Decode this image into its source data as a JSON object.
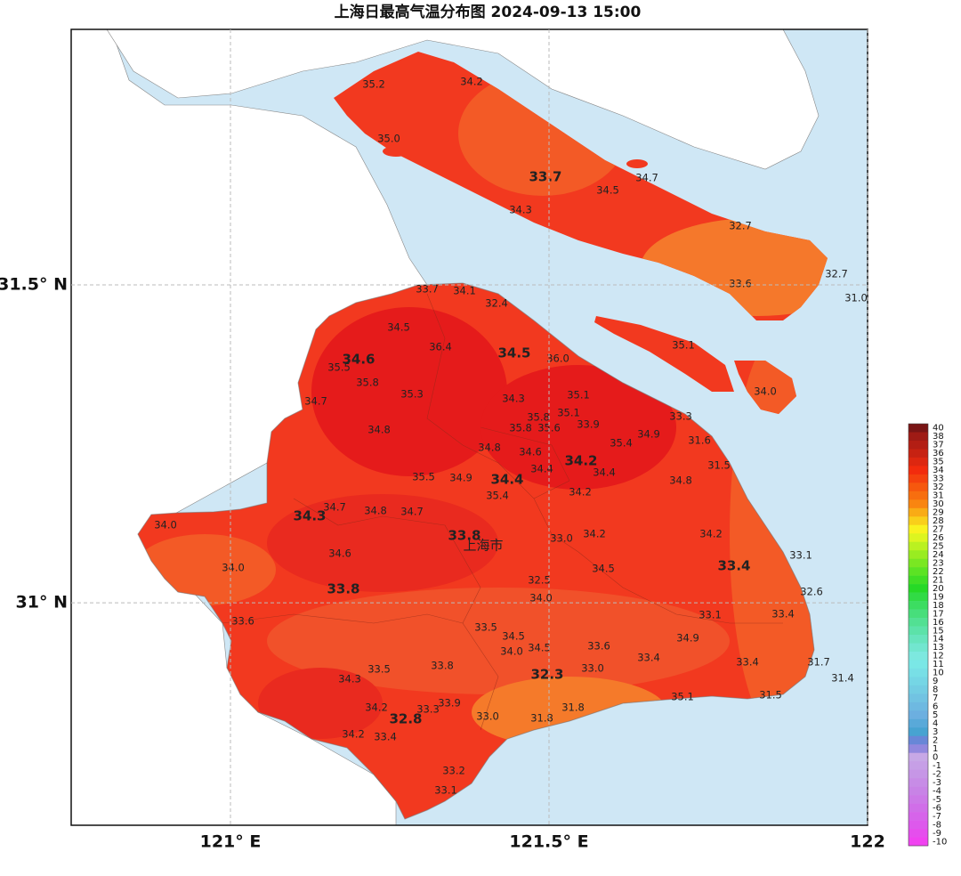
{
  "map": {
    "title": "上海日最高气温分布图 2024-09-13 15:00",
    "xlim": [
      120.75,
      122
    ],
    "ylim": [
      30.65,
      31.902
    ],
    "xticks": [
      {
        "value": 121,
        "label": "121° E"
      },
      {
        "value": 121.5,
        "label": "121.5° E"
      },
      {
        "value": 122,
        "label": "122"
      }
    ],
    "yticks": [
      {
        "value": 31.5,
        "label": "31.5° N"
      },
      {
        "value": 31,
        "label": "31° N"
      }
    ],
    "grid": true,
    "city_label": "上海市",
    "station_labels": [
      "35.2",
      "34.2",
      "35.0",
      "33.7",
      "34.7",
      "34.5",
      "34.3",
      "32.7",
      "32.7",
      "33.6",
      "31.0",
      "35.1",
      "34.0",
      "33.7",
      "34.1",
      "32.4",
      "34.5",
      "36.4",
      "34.5",
      "36.0",
      "34.6",
      "35.5",
      "35.8",
      "35.3",
      "35.1",
      "34.3",
      "34.7",
      "35.8",
      "35.1",
      "33.3",
      "35.8",
      "35.6",
      "33.9",
      "34.8",
      "34.9",
      "31.6",
      "35.4",
      "34.8",
      "34.6",
      "34.2",
      "31.5",
      "34.4",
      "34.4",
      "35.5",
      "34.9",
      "34.4",
      "34.8",
      "35.4",
      "34.2",
      "34.7",
      "34.8",
      "34.7",
      "34.3",
      "34.0",
      "33.8",
      "33.0",
      "34.2",
      "34.2",
      "34.6",
      "33.1",
      "34.0",
      "34.5",
      "33.4",
      "32.5",
      "33.8",
      "32.6",
      "34.0",
      "33.1",
      "33.4",
      "33.6",
      "33.5",
      "34.5",
      "34.9",
      "34.0",
      "34.5",
      "33.6",
      "33.4",
      "33.4",
      "31.7",
      "33.5",
      "33.8",
      "33.0",
      "32.3",
      "31.4",
      "34.3",
      "35.1",
      "31.5",
      "33.9",
      "34.2",
      "33.3",
      "31.8",
      "32.8",
      "33.0",
      "31.8",
      "34.2",
      "33.4",
      "33.2",
      "33.1"
    ],
    "colorbar": {
      "ticks": [
        40,
        38,
        37,
        36,
        35,
        34,
        33,
        32,
        31,
        30,
        29,
        28,
        27,
        26,
        25,
        24,
        23,
        22,
        21,
        20,
        19,
        18,
        17,
        16,
        15,
        14,
        13,
        12,
        11,
        10,
        9,
        8,
        7,
        6,
        5,
        4,
        3,
        2,
        1,
        0,
        -1,
        -2,
        -3,
        -4,
        -5,
        -6,
        -7,
        -8,
        -9,
        -10
      ]
    }
  }
}
